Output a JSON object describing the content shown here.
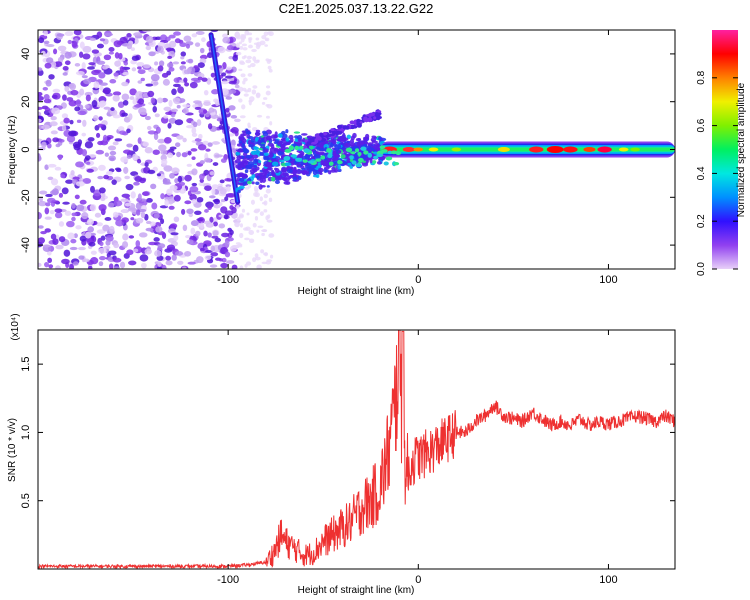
{
  "figure": {
    "title": "C2E1.2025.037.13.22.G22"
  },
  "chart_data": [
    {
      "type": "heatmap",
      "title": "C2E1.2025.037.13.22.G22",
      "xlabel": "Height of straight line (km)",
      "ylabel": "Frequency (Hz)",
      "xlim": [
        -200,
        135
      ],
      "ylim": [
        -50,
        50
      ],
      "xticks": [
        -100,
        0,
        100
      ],
      "yticks": [
        -40,
        -20,
        0,
        20,
        40
      ],
      "colorbar": {
        "label": "Normalized spectral amplitude",
        "range": [
          0,
          1
        ],
        "ticks": [
          "0.0",
          "0.2",
          "0.4",
          "0.6",
          "0.8"
        ],
        "colors": [
          "#e8d0f8",
          "#9040f0",
          "#3010ff",
          "#0090ff",
          "#00e8e0",
          "#00f060",
          "#80f000",
          "#f0f000",
          "#ff8000",
          "#ff0000",
          "#ff20a0"
        ]
      },
      "features": {
        "noise_region_x": [
          -200,
          -95
        ],
        "descending_streak": {
          "x_start": -109,
          "y_start": 48,
          "x_end": -95,
          "y_end": -22
        },
        "signal_band_start_x": -95,
        "signal_band_center_y": 0,
        "strong_band_x": [
          -20,
          135
        ]
      }
    },
    {
      "type": "line",
      "xlabel": "Height of straight line (km)",
      "ylabel": "SNR (10 * v/v)",
      "y_scale_label": "(x10⁴)",
      "xlim": [
        -200,
        135
      ],
      "ylim": [
        0,
        1.75
      ],
      "xticks": [
        -100,
        0,
        100
      ],
      "yticks": [
        0.5,
        1.0,
        1.5
      ],
      "color": "#ee3030",
      "series": [
        {
          "x": [
            -200,
            -180,
            -160,
            -140,
            -120,
            -100,
            -90,
            -80,
            -76,
            -72,
            -70,
            -65,
            -60,
            -55,
            -50,
            -45,
            -40,
            -35,
            -30,
            -25,
            -20,
            -15,
            -12,
            -10,
            -8,
            -6,
            -4,
            -2,
            0,
            5,
            10,
            15,
            20,
            25,
            30,
            35,
            40,
            45,
            50,
            55,
            60,
            65,
            70,
            75,
            80,
            85,
            90,
            95,
            100,
            105,
            110,
            115,
            120,
            125,
            130,
            135
          ],
          "y": [
            0.02,
            0.02,
            0.02,
            0.02,
            0.02,
            0.02,
            0.03,
            0.05,
            0.12,
            0.25,
            0.2,
            0.15,
            0.1,
            0.12,
            0.2,
            0.25,
            0.3,
            0.35,
            0.45,
            0.5,
            0.6,
            0.9,
            1.2,
            1.72,
            0.9,
            0.7,
            0.75,
            0.8,
            0.82,
            0.85,
            0.9,
            0.95,
            1.0,
            1.0,
            1.08,
            1.12,
            1.2,
            1.12,
            1.1,
            1.08,
            1.15,
            1.1,
            1.05,
            1.08,
            1.05,
            1.1,
            1.05,
            1.08,
            1.06,
            1.08,
            1.1,
            1.12,
            1.1,
            1.08,
            1.12,
            1.08
          ]
        }
      ]
    }
  ]
}
